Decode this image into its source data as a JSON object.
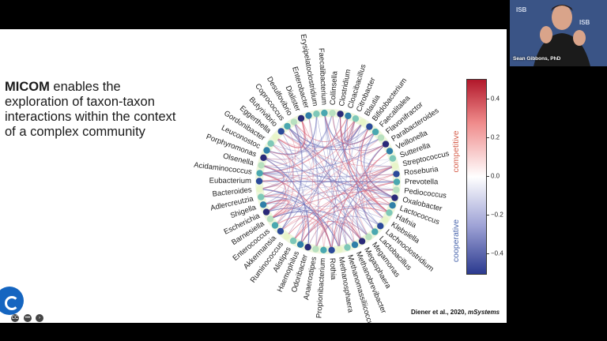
{
  "slide": {
    "headline_bold": "MICOM",
    "headline_rest": " enables the exploration of taxon-taxon interactions within the context of a complex community",
    "citation_authors": "Diener et al., 2020, ",
    "citation_journal": "mSystems"
  },
  "chart_data": {
    "type": "chord",
    "taxa": [
      "Faecalibacterium",
      "Collinsella",
      "Clostridium",
      "Cloacibacillus",
      "Citrobacter",
      "Blautia",
      "Bifidobacterium",
      "Faecalitalea",
      "Flavonifractor",
      "Parabacteroides",
      "Veillonella",
      "Sutterella",
      "Streptococcus",
      "Roseburia",
      "Prevotella",
      "Pediococcus",
      "Oxalobacter",
      "Lactococcus",
      "Hafnia",
      "Klebsiella",
      "Lachnoclostridium",
      "Lactobacillus",
      "Megamonas",
      "Megasphaera",
      "Methanobrevibacter",
      "Methanomassiliicoccus",
      "Methanosphaera",
      "Rothia",
      "Propionibacterium",
      "Anaerostipes",
      "Odoribacter",
      "Haemophilus",
      "Alistipes",
      "Ruminococcus",
      "Akkermansia",
      "Enterococcus",
      "Barnesiella",
      "Escherichia",
      "Shigella",
      "Adlercreutzia",
      "Bacteroides",
      "Eubacterium",
      "Acidaminococcus",
      "Olsenella",
      "Porphyromonas",
      "Leuconostoc",
      "Gordonibacter",
      "Eggerthella",
      "Butyrivibrio",
      "Coprococcus",
      "Desulfovibrio",
      "Dialister",
      "Enterobacter",
      "Erysipelatoclostridium"
    ],
    "colorbar": {
      "ticks": [
        "0.4",
        "0.2",
        "0.0",
        "−0.2",
        "−0.4"
      ],
      "tick_values": [
        0.4,
        0.2,
        0.0,
        -0.2,
        -0.4
      ],
      "range": [
        -0.5,
        0.5
      ],
      "top_label": "competitive",
      "bottom_label": "cooperative",
      "colors": {
        "max": "#b2182b",
        "mid": "#ffffff",
        "min": "#2b3a8f"
      }
    }
  },
  "webcam": {
    "name": "Sean Gibbons, PhD",
    "logo_text": "ISB"
  },
  "controls": {
    "cc": "CC",
    "more": "•••",
    "next": "›"
  }
}
